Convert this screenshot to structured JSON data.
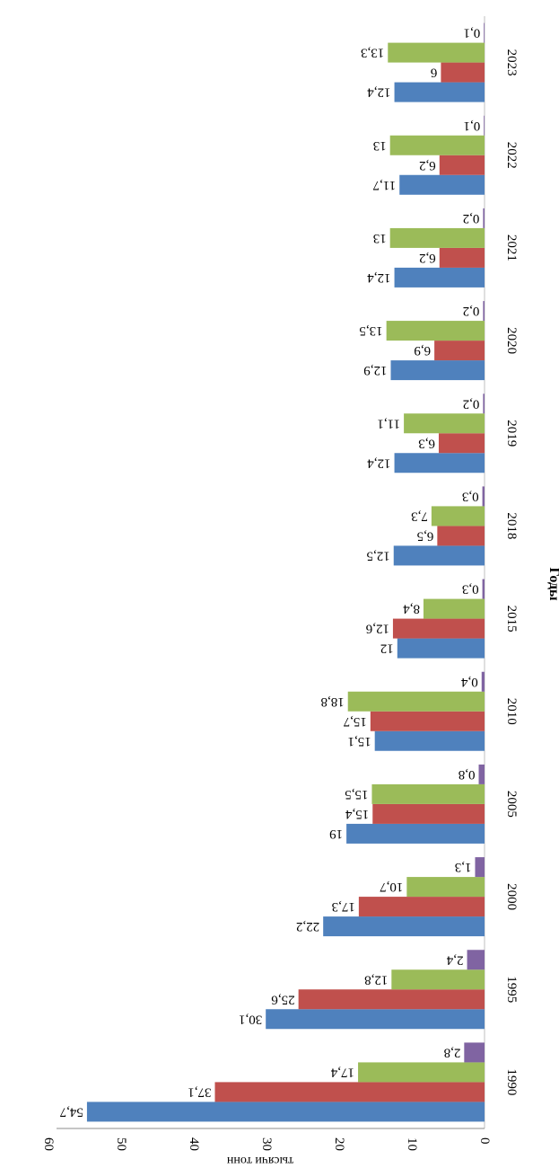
{
  "chart_data": {
    "type": "bar",
    "orientation": "rotated-180",
    "xlabel": "Годы",
    "ylabel": "тысячи тонн",
    "ylim": [
      0,
      60
    ],
    "yticks": [
      "0",
      "10",
      "20",
      "30",
      "40",
      "50",
      "60"
    ],
    "categories": [
      "1990",
      "1995",
      "2000",
      "2005",
      "2010",
      "2015",
      "2018",
      "2019",
      "2020",
      "2021",
      "2022",
      "2023"
    ],
    "series": [
      {
        "name": "series-1",
        "color": "#4f81bd",
        "values": [
          54.7,
          30.1,
          22.2,
          19,
          15.1,
          12,
          12.5,
          12.4,
          12.9,
          12.4,
          11.7,
          12.4
        ],
        "labels": [
          "54,7",
          "30,1",
          "22,2",
          "19",
          "15,1",
          "12",
          "12,5",
          "12,4",
          "12,9",
          "12,4",
          "11,7",
          "12,4"
        ]
      },
      {
        "name": "series-2",
        "color": "#c0504d",
        "values": [
          37.1,
          25.6,
          17.3,
          15.4,
          15.7,
          12.6,
          6.5,
          6.3,
          6.9,
          6.2,
          6.2,
          6
        ],
        "labels": [
          "37,1",
          "25,6",
          "17,3",
          "15,4",
          "15,7",
          "12,6",
          "6,5",
          "6,3",
          "6,9",
          "6,2",
          "6,2",
          "6"
        ]
      },
      {
        "name": "series-3",
        "color": "#9bbb59",
        "values": [
          17.4,
          12.8,
          10.7,
          15.5,
          18.8,
          8.4,
          7.3,
          11.1,
          13.5,
          13,
          13,
          13.3
        ],
        "labels": [
          "17,4",
          "12,8",
          "10,7",
          "15,5",
          "18,8",
          "8,4",
          "7,3",
          "11,1",
          "13,5",
          "13",
          "13",
          "13,3"
        ]
      },
      {
        "name": "series-4",
        "color": "#8064a2",
        "values": [
          2.8,
          2.4,
          1.3,
          0.8,
          0.4,
          0.3,
          0.3,
          0.2,
          0.2,
          0.2,
          0.1,
          0.1
        ],
        "labels": [
          "2,8",
          "2,4",
          "1,3",
          "0,8",
          "0,4",
          "0,3",
          "0,3",
          "0,2",
          "0,2",
          "0,2",
          "0,1",
          "0,1"
        ]
      }
    ]
  }
}
